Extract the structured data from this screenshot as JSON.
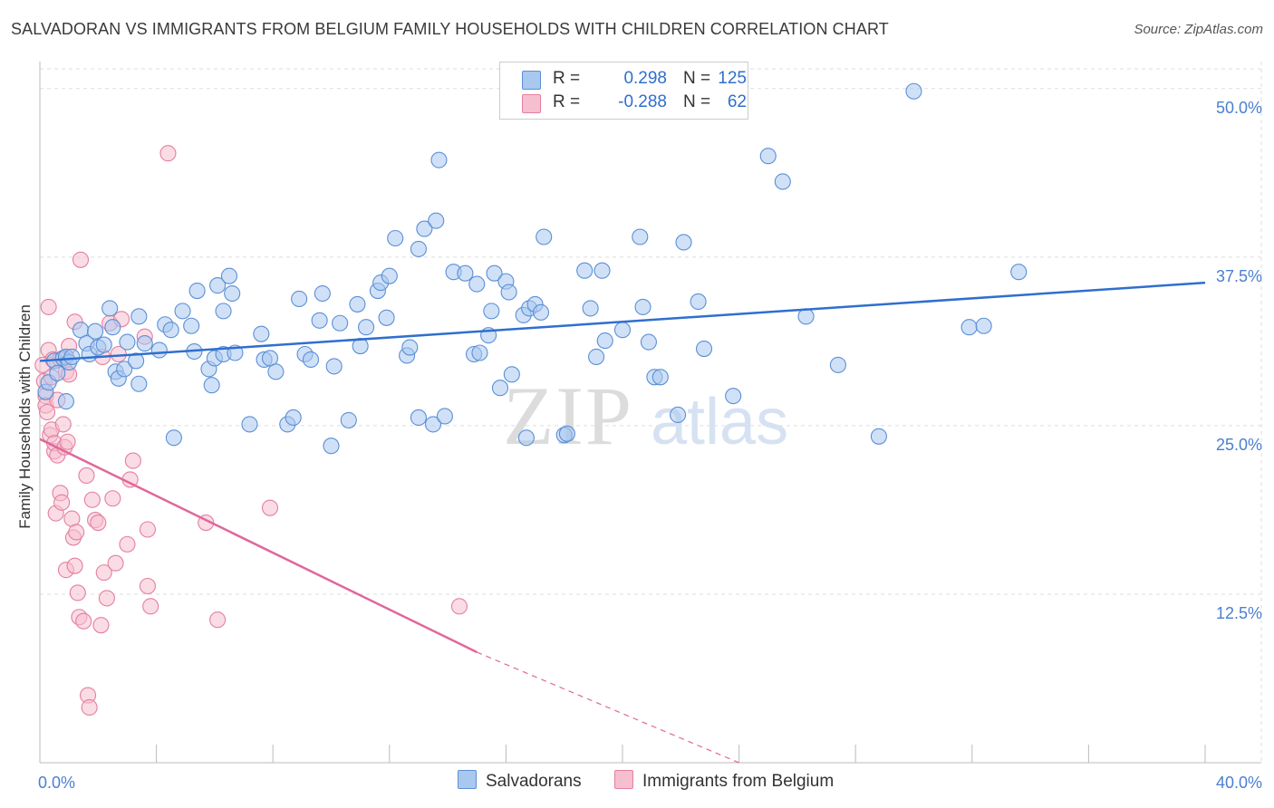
{
  "header": {
    "title": "SALVADORAN VS IMMIGRANTS FROM BELGIUM FAMILY HOUSEHOLDS WITH CHILDREN CORRELATION CHART",
    "source": "Source: ZipAtlas.com"
  },
  "legend": {
    "rows": [
      {
        "r_label": "R =",
        "r_value": "0.298",
        "n_label": "N =",
        "n_value": "125"
      },
      {
        "r_label": "R =",
        "r_value": "-0.288",
        "n_label": "N =",
        "n_value": "62"
      }
    ]
  },
  "bottom_legend": {
    "series1": "Salvadorans",
    "series2": "Immigrants from Belgium"
  },
  "colors": {
    "blue_fill": "#a9c8f0",
    "blue_stroke": "#5b8fd6",
    "blue_line": "#2f6fce",
    "pink_fill": "#f6bfd0",
    "pink_stroke": "#e47fa0",
    "pink_line": "#e0679a",
    "axis_text": "#4a7fd0",
    "grid": "#dddddd"
  },
  "chart_data": {
    "type": "scatter",
    "title": "SALVADORAN VS IMMIGRANTS FROM BELGIUM FAMILY HOUSEHOLDS WITH CHILDREN CORRELATION CHART",
    "xlabel": "",
    "ylabel": "Family Households with Children",
    "xlim": [
      0,
      40
    ],
    "ylim": [
      0,
      52
    ],
    "x_tick_labels": [
      "0.0%",
      "40.0%"
    ],
    "y_ticks": [
      12.5,
      25.0,
      37.5,
      50.0
    ],
    "y_tick_labels": [
      "12.5%",
      "25.0%",
      "37.5%",
      "50.0%"
    ],
    "watermark": "ZIPatlas",
    "series": [
      {
        "name": "Salvadorans",
        "color": "blue",
        "trend": {
          "x0": 0,
          "y0": 29.8,
          "x1": 40,
          "y1": 35.6
        },
        "points": [
          [
            0.2,
            27.5
          ],
          [
            0.3,
            28.2
          ],
          [
            0.5,
            29.8
          ],
          [
            0.6,
            28.9
          ],
          [
            0.8,
            30.0
          ],
          [
            0.9,
            30.1
          ],
          [
            1.0,
            29.7
          ],
          [
            1.4,
            32.1
          ],
          [
            1.6,
            31.1
          ],
          [
            1.7,
            30.3
          ],
          [
            1.9,
            32.0
          ],
          [
            2.0,
            30.8
          ],
          [
            2.4,
            33.7
          ],
          [
            2.5,
            32.3
          ],
          [
            2.6,
            29.0
          ],
          [
            2.7,
            28.5
          ],
          [
            2.9,
            29.2
          ],
          [
            3.0,
            31.2
          ],
          [
            3.3,
            29.8
          ],
          [
            3.4,
            28.1
          ],
          [
            3.4,
            33.1
          ],
          [
            3.6,
            31.1
          ],
          [
            4.1,
            30.6
          ],
          [
            4.3,
            32.5
          ],
          [
            4.5,
            32.1
          ],
          [
            4.6,
            24.1
          ],
          [
            4.9,
            33.5
          ],
          [
            5.2,
            32.4
          ],
          [
            5.3,
            30.5
          ],
          [
            5.4,
            35.0
          ],
          [
            5.8,
            29.2
          ],
          [
            5.9,
            28.0
          ],
          [
            6.0,
            30.0
          ],
          [
            6.1,
            35.4
          ],
          [
            6.3,
            33.5
          ],
          [
            6.3,
            30.3
          ],
          [
            6.5,
            36.1
          ],
          [
            6.6,
            34.8
          ],
          [
            6.7,
            30.4
          ],
          [
            7.2,
            25.1
          ],
          [
            7.6,
            31.8
          ],
          [
            7.7,
            29.9
          ],
          [
            7.9,
            30.0
          ],
          [
            8.1,
            29.0
          ],
          [
            8.5,
            25.1
          ],
          [
            8.7,
            25.6
          ],
          [
            8.9,
            34.4
          ],
          [
            9.1,
            30.3
          ],
          [
            9.3,
            29.9
          ],
          [
            9.6,
            32.8
          ],
          [
            9.7,
            34.8
          ],
          [
            10.0,
            23.5
          ],
          [
            10.1,
            29.4
          ],
          [
            10.3,
            32.6
          ],
          [
            10.6,
            25.4
          ],
          [
            10.9,
            34.0
          ],
          [
            11.0,
            30.9
          ],
          [
            11.2,
            32.3
          ],
          [
            11.6,
            35.0
          ],
          [
            11.7,
            35.6
          ],
          [
            11.9,
            33.0
          ],
          [
            12.0,
            36.1
          ],
          [
            12.2,
            38.9
          ],
          [
            12.6,
            30.2
          ],
          [
            12.7,
            30.8
          ],
          [
            13.0,
            25.6
          ],
          [
            13.0,
            38.1
          ],
          [
            13.2,
            39.6
          ],
          [
            13.5,
            25.1
          ],
          [
            13.6,
            40.2
          ],
          [
            13.7,
            44.7
          ],
          [
            13.9,
            25.7
          ],
          [
            14.2,
            36.4
          ],
          [
            14.6,
            36.3
          ],
          [
            14.9,
            30.3
          ],
          [
            15.0,
            35.5
          ],
          [
            15.1,
            30.4
          ],
          [
            15.4,
            31.7
          ],
          [
            15.5,
            33.5
          ],
          [
            15.6,
            36.3
          ],
          [
            15.8,
            27.8
          ],
          [
            16.0,
            35.7
          ],
          [
            16.1,
            34.9
          ],
          [
            16.2,
            28.8
          ],
          [
            16.6,
            33.2
          ],
          [
            16.7,
            24.1
          ],
          [
            16.8,
            33.7
          ],
          [
            17.0,
            34.0
          ],
          [
            17.2,
            33.4
          ],
          [
            17.3,
            39.0
          ],
          [
            18.0,
            24.3
          ],
          [
            18.1,
            24.4
          ],
          [
            18.7,
            36.5
          ],
          [
            18.9,
            33.7
          ],
          [
            19.1,
            30.1
          ],
          [
            19.3,
            36.5
          ],
          [
            19.4,
            31.3
          ],
          [
            20.0,
            32.1
          ],
          [
            20.6,
            39.0
          ],
          [
            20.7,
            33.8
          ],
          [
            20.9,
            31.2
          ],
          [
            21.1,
            28.6
          ],
          [
            21.3,
            28.6
          ],
          [
            21.9,
            25.8
          ],
          [
            22.1,
            38.6
          ],
          [
            22.6,
            34.2
          ],
          [
            22.8,
            30.7
          ],
          [
            23.8,
            27.2
          ],
          [
            25.0,
            45.0
          ],
          [
            25.5,
            43.1
          ],
          [
            26.3,
            33.1
          ],
          [
            27.4,
            29.5
          ],
          [
            28.8,
            24.2
          ],
          [
            30.0,
            49.8
          ],
          [
            31.9,
            32.3
          ],
          [
            32.4,
            32.4
          ],
          [
            33.6,
            36.4
          ],
          [
            0.9,
            26.8
          ],
          [
            1.1,
            30.1
          ],
          [
            2.2,
            31.0
          ]
        ]
      },
      {
        "name": "Immigrants from Belgium",
        "color": "pink",
        "trend": {
          "x0": 0,
          "y0": 24.0,
          "x1": 15.0,
          "y1": 8.2
        },
        "trend_extension": {
          "x0": 15.0,
          "y0": 8.2,
          "x1": 24.0,
          "y1": 0.0
        },
        "points": [
          [
            0.1,
            29.5
          ],
          [
            0.15,
            28.3
          ],
          [
            0.2,
            27.2
          ],
          [
            0.2,
            26.5
          ],
          [
            0.25,
            26.0
          ],
          [
            0.3,
            33.8
          ],
          [
            0.3,
            30.6
          ],
          [
            0.35,
            24.3
          ],
          [
            0.4,
            24.7
          ],
          [
            0.45,
            29.9
          ],
          [
            0.5,
            23.1
          ],
          [
            0.5,
            23.7
          ],
          [
            0.55,
            18.5
          ],
          [
            0.6,
            22.8
          ],
          [
            0.7,
            29.9
          ],
          [
            0.7,
            20.0
          ],
          [
            0.75,
            19.3
          ],
          [
            0.8,
            25.1
          ],
          [
            0.85,
            23.4
          ],
          [
            0.9,
            29.0
          ],
          [
            0.9,
            14.3
          ],
          [
            0.95,
            23.8
          ],
          [
            1.0,
            30.9
          ],
          [
            1.1,
            18.1
          ],
          [
            1.15,
            16.7
          ],
          [
            1.2,
            32.7
          ],
          [
            1.2,
            14.6
          ],
          [
            1.25,
            17.1
          ],
          [
            1.3,
            12.6
          ],
          [
            1.35,
            10.8
          ],
          [
            1.4,
            37.3
          ],
          [
            1.5,
            10.5
          ],
          [
            1.6,
            21.3
          ],
          [
            1.65,
            5.0
          ],
          [
            1.7,
            4.1
          ],
          [
            1.8,
            19.5
          ],
          [
            1.9,
            18.0
          ],
          [
            2.0,
            17.8
          ],
          [
            2.1,
            10.2
          ],
          [
            2.15,
            30.1
          ],
          [
            2.2,
            14.1
          ],
          [
            2.3,
            12.2
          ],
          [
            2.4,
            32.6
          ],
          [
            2.5,
            19.6
          ],
          [
            2.6,
            14.8
          ],
          [
            2.7,
            30.3
          ],
          [
            2.8,
            32.9
          ],
          [
            3.0,
            16.2
          ],
          [
            3.1,
            21.0
          ],
          [
            3.2,
            22.4
          ],
          [
            3.6,
            31.6
          ],
          [
            3.7,
            13.1
          ],
          [
            3.7,
            17.3
          ],
          [
            3.8,
            11.6
          ],
          [
            4.4,
            45.2
          ],
          [
            5.7,
            17.8
          ],
          [
            6.1,
            10.6
          ],
          [
            7.9,
            18.9
          ],
          [
            14.4,
            11.6
          ],
          [
            0.6,
            26.9
          ],
          [
            0.4,
            28.6
          ],
          [
            1.0,
            28.8
          ]
        ]
      }
    ]
  }
}
